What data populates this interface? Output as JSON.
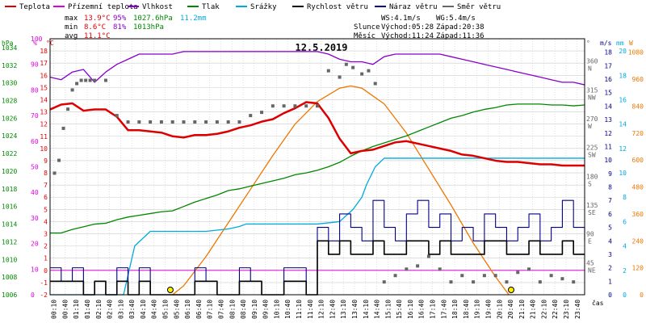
{
  "colors": {
    "border": "#000000",
    "grid": "#cccccc",
    "temp": "#dd0000",
    "dew": "#dd00dd",
    "hum": "#8800cc",
    "press": "#008800",
    "rain": "#00aadd",
    "wind": "#000000",
    "gust": "#000088",
    "dir": "#666666",
    "sun": "#ee7700",
    "stats_blue": "#00aadd"
  },
  "legend": [
    {
      "label": "Teplota",
      "color": "#dd0000"
    },
    {
      "label": "Přízemní teplota",
      "color": "#dd00dd"
    },
    {
      "label": "Vlhkost",
      "color": "#8800cc"
    },
    {
      "label": "Tlak",
      "color": "#008800"
    },
    {
      "label": "Srážky",
      "color": "#00aadd"
    },
    {
      "label": "Rychlost větru",
      "color": "#000000"
    },
    {
      "label": "Náraz větru",
      "color": "#000088"
    },
    {
      "label": "Směr větru",
      "color": "#666666"
    }
  ],
  "stats": {
    "max": {
      "label": "max",
      "temp": "13.9°C",
      "hum": "95%",
      "press": "1027.6hPa",
      "rain": "11.2mm"
    },
    "min": {
      "label": "min",
      "temp": "8.6°C",
      "hum": "81%",
      "press": "1013hPa"
    },
    "avg": {
      "label": "avg",
      "temp": "11.1°C"
    }
  },
  "info": {
    "ws": "WS:4.1m/s",
    "wg": "WG:5.4m/s",
    "sun_label": "Slunce",
    "sunrise": "Východ:05:28",
    "sunset": "Západ:20:38",
    "moon_label": "Měsíc",
    "moonrise": "Východ:11:24",
    "moonset": "Západ:11:36"
  },
  "chart_data": {
    "type": "line",
    "title": "12.5.2019",
    "xlabel": "čas",
    "x_ticks": [
      "00:10",
      "00:40",
      "01:10",
      "01:40",
      "02:10",
      "02:40",
      "03:10",
      "03:40",
      "04:10",
      "04:40",
      "05:10",
      "05:40",
      "06:10",
      "06:40",
      "07:10",
      "07:40",
      "08:10",
      "08:40",
      "09:10",
      "09:40",
      "10:10",
      "10:40",
      "11:10",
      "11:40",
      "12:10",
      "12:40",
      "13:10",
      "13:40",
      "14:10",
      "14:40",
      "15:10",
      "15:40",
      "16:10",
      "16:40",
      "17:10",
      "17:40",
      "18:10",
      "18:40",
      "19:10",
      "19:40",
      "20:10",
      "20:40",
      "21:10",
      "21:40",
      "22:10",
      "22:40",
      "23:10",
      "23:40"
    ],
    "axes": {
      "hPa": {
        "unit": "hPa",
        "ticks": [
          1006,
          1008,
          1010,
          1012,
          1014,
          1016,
          1018,
          1020,
          1022,
          1024,
          1026,
          1028,
          1030,
          1032,
          1034
        ],
        "range": [
          1006,
          1035
        ]
      },
      "pct": {
        "unit": "%",
        "ticks": [
          0,
          10,
          20,
          30,
          40,
          50,
          60,
          70,
          80,
          90,
          100
        ],
        "range": [
          0,
          100
        ]
      },
      "degC": {
        "unit": "°C",
        "ticks": [
          -2,
          -1,
          0,
          1,
          2,
          3,
          4,
          5,
          6,
          7,
          8,
          9,
          10,
          11,
          12,
          13,
          14,
          15,
          16,
          17,
          18
        ],
        "range": [
          -2,
          19
        ]
      },
      "dir": {
        "unit": "°",
        "ticks": [
          {
            "v": "45",
            "d": "NE"
          },
          {
            "v": "90",
            "d": "E"
          },
          {
            "v": "135",
            "d": "SE"
          },
          {
            "v": "180",
            "d": "S"
          },
          {
            "v": "225",
            "d": "SW"
          },
          {
            "v": "270",
            "d": "W"
          },
          {
            "v": "315",
            "d": "NW"
          },
          {
            "v": "360",
            "d": "N"
          }
        ],
        "range": [
          0,
          400
        ]
      },
      "ms": {
        "unit": "m/s",
        "ticks": [
          0,
          1,
          2,
          3,
          4,
          5,
          6,
          7,
          8,
          9,
          10,
          11,
          12,
          13,
          14,
          15,
          16,
          17,
          18
        ],
        "range": [
          0,
          19
        ]
      },
      "mm": {
        "unit": "mm",
        "ticks": [
          0,
          2,
          4,
          6,
          8,
          10,
          12,
          14,
          16,
          18,
          20
        ],
        "range": [
          0,
          21
        ]
      },
      "W": {
        "unit": "W",
        "ticks": [
          0,
          120,
          240,
          360,
          480,
          600,
          720,
          840,
          960,
          1080
        ],
        "range": [
          0,
          1140
        ]
      }
    },
    "series": [
      {
        "name": "Teplota",
        "axis": "degC",
        "x": [
          0,
          0.5,
          1,
          1.5,
          2,
          2.5,
          3,
          3.5,
          4,
          4.5,
          5,
          5.5,
          6,
          6.5,
          7,
          7.5,
          8,
          8.5,
          9,
          9.5,
          10,
          10.5,
          11,
          11.5,
          12,
          12.5,
          13,
          13.5,
          14,
          14.5,
          15,
          15.5,
          16,
          16.5,
          17,
          17.5,
          18,
          18.5,
          19,
          19.5,
          20,
          20.5,
          21,
          21.5,
          22,
          22.5,
          23,
          23.5,
          24
        ],
        "y": [
          13.2,
          13.6,
          13.7,
          13.1,
          13.2,
          13.2,
          12.6,
          11.5,
          11.5,
          11.4,
          11.3,
          11.0,
          10.9,
          11.1,
          11.1,
          11.2,
          11.4,
          11.7,
          11.9,
          12.2,
          12.4,
          12.9,
          13.3,
          13.8,
          13.7,
          12.5,
          10.8,
          9.6,
          9.8,
          9.9,
          10.2,
          10.5,
          10.6,
          10.4,
          10.2,
          10.0,
          9.8,
          9.5,
          9.4,
          9.2,
          9.0,
          8.9,
          8.9,
          8.8,
          8.7,
          8.7,
          8.6,
          8.6,
          8.6
        ]
      },
      {
        "name": "Vlhkost",
        "axis": "pct",
        "x": [
          0,
          0.5,
          1,
          1.5,
          2,
          2.5,
          3,
          3.5,
          4,
          4.5,
          5,
          5.5,
          6,
          6.5,
          7,
          7.5,
          8,
          8.5,
          9,
          9.5,
          10,
          10.5,
          11,
          11.5,
          12,
          12.5,
          13,
          13.5,
          14,
          14.5,
          15,
          15.5,
          16,
          16.5,
          17,
          17.5,
          18,
          18.5,
          19,
          19.5,
          20,
          20.5,
          21,
          21.5,
          22,
          22.5,
          23,
          23.5,
          24
        ],
        "y": [
          85,
          84,
          87,
          88,
          83,
          87,
          90,
          92,
          94,
          94,
          94,
          94,
          95,
          95,
          95,
          95,
          95,
          95,
          95,
          95,
          95,
          95,
          95,
          95,
          95,
          94,
          92,
          91,
          91,
          90,
          93,
          94,
          94,
          94,
          94,
          94,
          93,
          92,
          91,
          90,
          89,
          88,
          87,
          86,
          85,
          84,
          83,
          83,
          82
        ]
      },
      {
        "name": "Tlak",
        "axis": "hPa",
        "x": [
          0,
          0.5,
          1,
          1.5,
          2,
          2.5,
          3,
          3.5,
          4,
          4.5,
          5,
          5.5,
          6,
          6.5,
          7,
          7.5,
          8,
          8.5,
          9,
          9.5,
          10,
          10.5,
          11,
          11.5,
          12,
          12.5,
          13,
          13.5,
          14,
          14.5,
          15,
          15.5,
          16,
          16.5,
          17,
          17.5,
          18,
          18.5,
          19,
          19.5,
          20,
          20.5,
          21,
          21.5,
          22,
          22.5,
          23,
          23.5,
          24
        ],
        "y": [
          1013,
          1013,
          1013.4,
          1013.7,
          1014,
          1014.1,
          1014.5,
          1014.8,
          1015,
          1015.2,
          1015.4,
          1015.5,
          1016,
          1016.5,
          1016.9,
          1017.3,
          1017.8,
          1018,
          1018.3,
          1018.6,
          1018.9,
          1019.2,
          1019.6,
          1019.8,
          1020.1,
          1020.5,
          1021,
          1021.7,
          1022.3,
          1022.8,
          1023.2,
          1023.6,
          1024,
          1024.5,
          1025,
          1025.5,
          1026,
          1026.3,
          1026.7,
          1027,
          1027.2,
          1027.5,
          1027.6,
          1027.6,
          1027.6,
          1027.5,
          1027.5,
          1027.4,
          1027.5
        ]
      },
      {
        "name": "Srážky",
        "axis": "mm",
        "x": [
          0,
          3.3,
          3.8,
          4.5,
          5,
          6,
          6.5,
          7,
          8,
          8.5,
          8.8,
          9,
          10,
          11,
          12,
          13,
          13.3,
          13.6,
          14,
          14.2,
          14.6,
          15,
          16,
          17,
          18,
          19,
          20,
          21,
          22,
          23,
          24
        ],
        "y": [
          0,
          0,
          4.0,
          5.2,
          5.2,
          5.2,
          5.2,
          5.2,
          5.4,
          5.6,
          5.8,
          5.8,
          5.8,
          5.8,
          5.8,
          6.0,
          6.5,
          7.0,
          8.0,
          9.0,
          10.5,
          11.2,
          11.2,
          11.2,
          11.2,
          11.2,
          11.2,
          11.2,
          11.2,
          11.2,
          11.2
        ]
      },
      {
        "name": "Rychlost větru",
        "axis": "ms",
        "x": [
          0,
          0.5,
          1,
          1.5,
          2,
          2.5,
          3,
          3.5,
          4,
          4.5,
          5,
          5.5,
          6,
          6.5,
          7,
          7.5,
          8,
          8.5,
          9,
          9.5,
          10,
          10.5,
          11,
          11.5,
          12,
          12.5,
          13,
          13.5,
          14,
          14.5,
          15,
          15.5,
          16,
          16.5,
          17,
          17.5,
          18,
          18.5,
          19,
          19.5,
          20,
          20.5,
          21,
          21.5,
          22,
          22.5,
          23,
          23.5,
          24
        ],
        "y": [
          1,
          1,
          1,
          0,
          1,
          0,
          1,
          0,
          1,
          0,
          0,
          0,
          0,
          1,
          1,
          0,
          0,
          1,
          1,
          0,
          0,
          1,
          1,
          0,
          4,
          3,
          4,
          3,
          3,
          4,
          3,
          3,
          4,
          4,
          3,
          4,
          3,
          3,
          3,
          4,
          4,
          3,
          3,
          4,
          3,
          3,
          4,
          3,
          3
        ]
      },
      {
        "name": "Náraz větru",
        "axis": "ms",
        "x": [
          0,
          0.5,
          1,
          1.5,
          2,
          2.5,
          3,
          3.5,
          4,
          4.5,
          5,
          5.5,
          6,
          6.5,
          7,
          7.5,
          8,
          8.5,
          9,
          9.5,
          10,
          10.5,
          11,
          11.5,
          12,
          12.5,
          13,
          13.5,
          14,
          14.5,
          15,
          15.5,
          16,
          16.5,
          17,
          17.5,
          18,
          18.5,
          19,
          19.5,
          20,
          20.5,
          21,
          21.5,
          22,
          22.5,
          23,
          23.5,
          24
        ],
        "y": [
          2,
          1,
          2,
          0,
          1,
          0,
          2,
          0,
          2,
          0,
          0,
          0,
          0,
          2,
          1,
          0,
          0,
          2,
          1,
          0,
          0,
          2,
          2,
          0,
          5,
          4,
          6,
          5,
          4,
          7,
          5,
          4,
          6,
          7,
          5,
          6,
          4,
          5,
          4,
          6,
          5,
          4,
          5,
          6,
          4,
          5,
          7,
          5,
          4
        ]
      },
      {
        "name": "Sluneční záření",
        "axis": "W",
        "x": [
          5.5,
          6,
          7,
          8,
          9,
          10,
          11,
          12,
          13,
          13.5,
          14,
          15,
          16,
          17,
          18,
          19,
          20,
          20.6
        ],
        "y": [
          0,
          40,
          170,
          320,
          470,
          620,
          760,
          860,
          920,
          930,
          920,
          850,
          720,
          560,
          400,
          230,
          80,
          0
        ]
      }
    ],
    "dir_points_hours": [
      0.2,
      0.4,
      0.6,
      0.8,
      1.0,
      1.2,
      1.4,
      1.6,
      1.8,
      2.0,
      2.5,
      3.0,
      3.5,
      4.0,
      4.5,
      5.0,
      5.5,
      6.0,
      6.5,
      7.0,
      7.5,
      8.0,
      8.5,
      9.0,
      9.5,
      10.0,
      10.5,
      11.0,
      11.5,
      12.0,
      12.5,
      13.0,
      13.3,
      13.6,
      14.0,
      14.3,
      14.6,
      15.0,
      15.5,
      16.0,
      16.5,
      17.0,
      17.5,
      18.0,
      18.5,
      19.0,
      19.5,
      20.0,
      20.5,
      21.0,
      21.5,
      22.0,
      22.5,
      23.0,
      23.5
    ],
    "dir_points_deg": [
      190,
      210,
      260,
      290,
      320,
      330,
      335,
      335,
      335,
      335,
      335,
      280,
      270,
      270,
      270,
      270,
      270,
      270,
      270,
      270,
      270,
      270,
      270,
      280,
      285,
      295,
      295,
      295,
      295,
      295,
      350,
      340,
      360,
      355,
      345,
      350,
      330,
      20,
      30,
      40,
      45,
      60,
      40,
      20,
      30,
      20,
      30,
      30,
      20,
      35,
      40,
      20,
      30,
      25,
      20
    ],
    "sun_marks_hours": [
      5.4,
      20.7
    ]
  }
}
